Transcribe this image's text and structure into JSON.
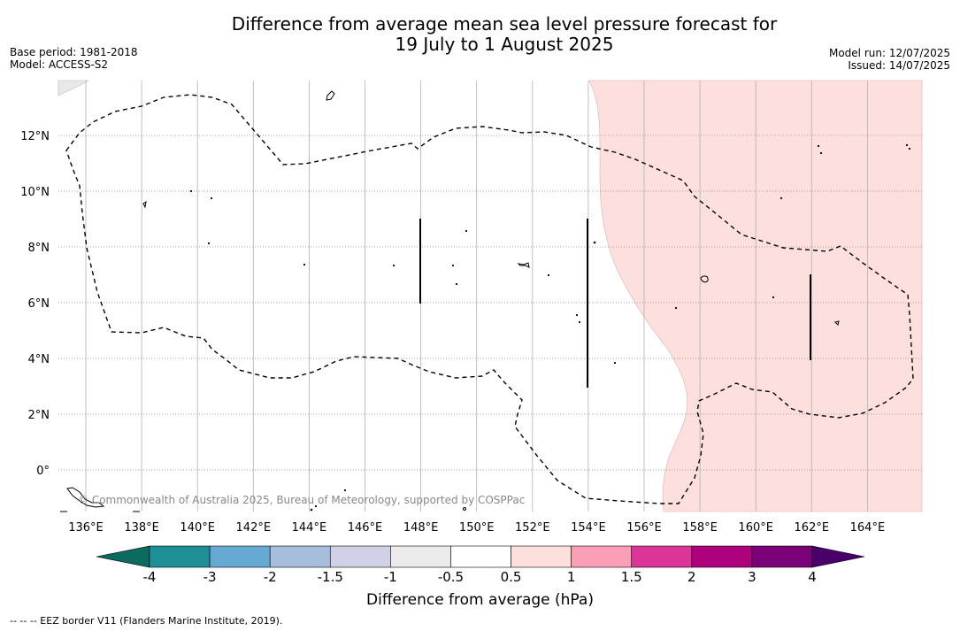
{
  "title_line1": "Difference from average mean sea level pressure forecast for",
  "title_line2": "19 July to 1 August 2025",
  "base_period": "Base period: 1981-2018",
  "model": "Model: ACCESS-S2",
  "model_run": "Model run: 12/07/2025",
  "issued": "Issued: 14/07/2025",
  "copyright": "© Commonwealth of Australia 2025, Bureau of Meteorology, supported by COSPPac",
  "footnote": "--  --  -- EEZ border V11 (Flanders Marine Institute, 2019).",
  "lon_labels": [
    "136°E",
    "138°E",
    "140°E",
    "142°E",
    "144°E",
    "146°E",
    "148°E",
    "150°E",
    "152°E",
    "154°E",
    "156°E",
    "158°E",
    "160°E",
    "162°E",
    "164°E"
  ],
  "lat_labels": [
    "12°N",
    "10°N",
    "8°N",
    "6°N",
    "4°N",
    "2°N",
    "0°"
  ],
  "colorbar": {
    "label": "Difference from average (hPa)",
    "ticks": [
      "-4",
      "-3",
      "-2",
      "-1.5",
      "-1",
      "-0.5",
      "0.5",
      "1",
      "1.5",
      "2",
      "3",
      "4"
    ],
    "colors": [
      "#1e8f97",
      "#66a9d2",
      "#a6bddb",
      "#d0d1e6",
      "#ebebeb",
      "#ffffff",
      "#fde0dd",
      "#fa9fb5",
      "#dd3497",
      "#ae017e",
      "#7a0177"
    ],
    "under_color": "#0a6b5e",
    "over_color": "#49006a"
  },
  "region_color": "#fde0dd"
}
